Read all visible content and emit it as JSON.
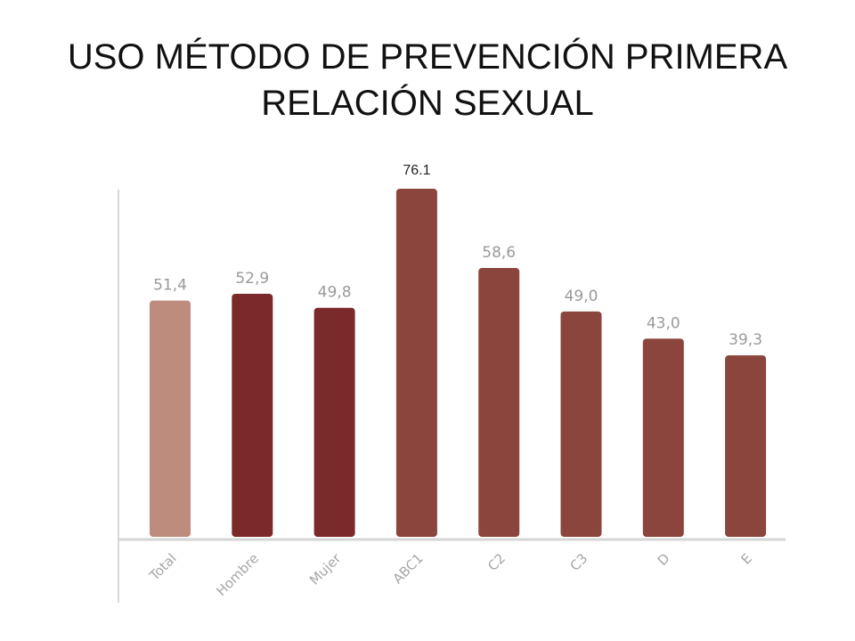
{
  "slide": {
    "title_line1": "USO MÉTODO DE PREVENCIÓN PRIMERA",
    "title_line2": "RELACIÓN SEXUAL"
  },
  "chart_data": {
    "type": "bar",
    "categories": [
      "Total",
      "Hombre",
      "Mujer",
      "ABC1",
      "C2",
      "C3",
      "D",
      "E"
    ],
    "values": [
      51.4,
      52.9,
      49.8,
      76.1,
      58.6,
      49.0,
      43.0,
      39.3
    ],
    "value_labels": [
      "51,4",
      "52,9",
      "49,8",
      "76.1",
      "58,6",
      "49,0",
      "43,0",
      "39,3"
    ],
    "colors": [
      "#bd8c7d",
      "#7b2a2b",
      "#7b2a2b",
      "#8b453c",
      "#8b453c",
      "#8b453c",
      "#8b453c",
      "#8b453c"
    ],
    "title": "",
    "xlabel": "",
    "ylabel": "",
    "ylim": [
      0,
      76.1
    ],
    "grid": false,
    "legend": "none"
  }
}
